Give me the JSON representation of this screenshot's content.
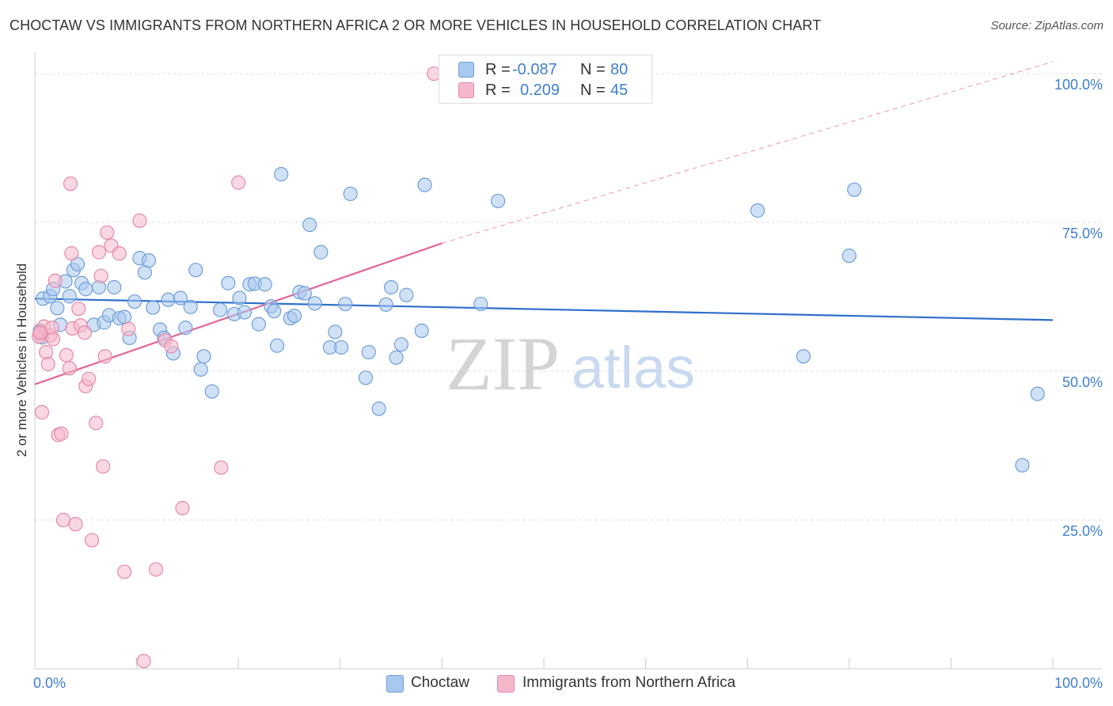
{
  "title": "CHOCTAW VS IMMIGRANTS FROM NORTHERN AFRICA 2 OR MORE VEHICLES IN HOUSEHOLD CORRELATION CHART",
  "source": "Source: ZipAtlas.com",
  "watermark": {
    "zip": "ZIP",
    "atlas": "atlas"
  },
  "legend": {
    "rows": [
      {
        "r_label": "R =",
        "r_value": "-0.087",
        "n_label": "N =",
        "n_value": "80"
      },
      {
        "r_label": "R =",
        "r_value": "0.209",
        "n_label": "N =",
        "n_value": "45"
      }
    ]
  },
  "bottom_legend": {
    "series1": "Choctaw",
    "series2": "Immigrants from Northern Africa"
  },
  "colors": {
    "choctaw_fill": "#a9c8ee",
    "choctaw_stroke": "#6f9fd8",
    "choctaw_line": "#2f6fcd",
    "immig_fill": "#f5b8cb",
    "immig_stroke": "#e58aa8",
    "immig_line": "#e0679a",
    "tick_color": "#3f7fd1",
    "grid": "#e0e0e0"
  },
  "chart_data": {
    "type": "scatter",
    "title": "CHOCTAW VS IMMIGRANTS FROM NORTHERN AFRICA 2 OR MORE VEHICLES IN HOUSEHOLD CORRELATION CHART",
    "xlabel": "",
    "ylabel": "2 or more Vehicles in Household",
    "xlim": [
      0,
      100
    ],
    "ylim": [
      0,
      102
    ],
    "x_tick_labels": [
      "0.0%",
      "100.0%"
    ],
    "y_ticks": [
      {
        "value": 25,
        "label": "25.0%"
      },
      {
        "value": 50,
        "label": "50.0%"
      },
      {
        "value": 75,
        "label": "75.0%"
      },
      {
        "value": 100,
        "label": "100.0%"
      }
    ],
    "series": [
      {
        "name": "Choctaw",
        "r": -0.087,
        "n": 80,
        "trend": {
          "x0": 0,
          "y0": 62.2,
          "x1": 100,
          "y1": 58.6
        },
        "points": [
          [
            0.5,
            56.8
          ],
          [
            0.8,
            62.2
          ],
          [
            1.5,
            62.6
          ],
          [
            1.8,
            63.8
          ],
          [
            2.2,
            60.6
          ],
          [
            2.5,
            57.8
          ],
          [
            3.0,
            65.1
          ],
          [
            3.4,
            62.6
          ],
          [
            3.8,
            67.0
          ],
          [
            4.2,
            68.0
          ],
          [
            4.6,
            64.8
          ],
          [
            5.0,
            63.8
          ],
          [
            5.8,
            57.8
          ],
          [
            6.3,
            64.1
          ],
          [
            6.8,
            58.2
          ],
          [
            7.3,
            59.4
          ],
          [
            7.8,
            64.1
          ],
          [
            8.3,
            58.9
          ],
          [
            8.8,
            59.1
          ],
          [
            9.3,
            55.6
          ],
          [
            9.8,
            61.7
          ],
          [
            10.3,
            69.0
          ],
          [
            10.8,
            66.6
          ],
          [
            11.2,
            68.6
          ],
          [
            11.6,
            60.7
          ],
          [
            12.3,
            57.0
          ],
          [
            12.7,
            55.6
          ],
          [
            13.1,
            62.0
          ],
          [
            13.6,
            53.0
          ],
          [
            14.3,
            62.3
          ],
          [
            14.8,
            57.3
          ],
          [
            15.3,
            60.8
          ],
          [
            15.8,
            67.0
          ],
          [
            16.3,
            50.3
          ],
          [
            16.6,
            52.5
          ],
          [
            17.4,
            46.6
          ],
          [
            18.2,
            60.3
          ],
          [
            19.0,
            64.8
          ],
          [
            19.6,
            59.6
          ],
          [
            20.1,
            62.3
          ],
          [
            20.6,
            59.9
          ],
          [
            21.1,
            64.6
          ],
          [
            21.6,
            64.7
          ],
          [
            22.0,
            57.9
          ],
          [
            22.6,
            64.6
          ],
          [
            23.2,
            60.9
          ],
          [
            23.5,
            60.1
          ],
          [
            23.8,
            54.3
          ],
          [
            24.2,
            83.1
          ],
          [
            25.1,
            58.9
          ],
          [
            25.5,
            59.3
          ],
          [
            26.0,
            63.3
          ],
          [
            26.5,
            63.1
          ],
          [
            27.0,
            74.6
          ],
          [
            27.5,
            61.4
          ],
          [
            28.1,
            70.0
          ],
          [
            29.0,
            54.0
          ],
          [
            29.5,
            56.6
          ],
          [
            30.1,
            54.0
          ],
          [
            30.5,
            61.3
          ],
          [
            31.0,
            79.8
          ],
          [
            32.5,
            48.9
          ],
          [
            32.8,
            53.2
          ],
          [
            33.8,
            43.7
          ],
          [
            34.5,
            61.2
          ],
          [
            35.0,
            64.1
          ],
          [
            35.5,
            52.3
          ],
          [
            36.0,
            54.5
          ],
          [
            36.5,
            62.8
          ],
          [
            38.0,
            56.8
          ],
          [
            38.3,
            81.3
          ],
          [
            43.8,
            61.3
          ],
          [
            45.5,
            78.6
          ],
          [
            71.0,
            77.0
          ],
          [
            75.5,
            52.5
          ],
          [
            80.0,
            69.4
          ],
          [
            80.5,
            80.5
          ],
          [
            97.0,
            34.2
          ],
          [
            98.5,
            46.2
          ],
          [
            0.7,
            55.7
          ]
        ]
      },
      {
        "name": "Immigrants from Northern Africa",
        "r": 0.209,
        "n": 45,
        "trend": {
          "x0": 0,
          "y0": 47.8,
          "x1": 40,
          "y1": 71.5,
          "dash_x1": 100,
          "dash_y1": 102
        },
        "points": [
          [
            0.4,
            55.8
          ],
          [
            0.6,
            56.6
          ],
          [
            0.7,
            43.1
          ],
          [
            0.9,
            57.5
          ],
          [
            1.1,
            53.2
          ],
          [
            1.3,
            51.2
          ],
          [
            1.5,
            56.0
          ],
          [
            1.7,
            57.3
          ],
          [
            1.8,
            55.4
          ],
          [
            2.0,
            65.2
          ],
          [
            2.3,
            39.3
          ],
          [
            2.6,
            39.5
          ],
          [
            2.8,
            25.0
          ],
          [
            3.1,
            52.7
          ],
          [
            3.4,
            50.5
          ],
          [
            3.5,
            81.5
          ],
          [
            3.6,
            69.8
          ],
          [
            3.7,
            57.2
          ],
          [
            4.0,
            24.3
          ],
          [
            4.3,
            60.5
          ],
          [
            4.5,
            57.7
          ],
          [
            4.9,
            56.5
          ],
          [
            5.0,
            47.5
          ],
          [
            5.3,
            48.7
          ],
          [
            5.6,
            21.6
          ],
          [
            6.0,
            41.3
          ],
          [
            6.3,
            70.0
          ],
          [
            6.5,
            66.0
          ],
          [
            6.7,
            34.0
          ],
          [
            6.9,
            52.5
          ],
          [
            7.1,
            73.3
          ],
          [
            7.5,
            71.1
          ],
          [
            8.3,
            69.8
          ],
          [
            8.8,
            16.3
          ],
          [
            9.2,
            57.1
          ],
          [
            10.3,
            75.3
          ],
          [
            10.7,
            1.3
          ],
          [
            11.9,
            16.7
          ],
          [
            12.8,
            55.2
          ],
          [
            13.4,
            54.2
          ],
          [
            14.5,
            27.0
          ],
          [
            18.3,
            33.8
          ],
          [
            20.0,
            81.7
          ],
          [
            39.2,
            100.0
          ],
          [
            0.5,
            56.4
          ]
        ]
      }
    ]
  }
}
